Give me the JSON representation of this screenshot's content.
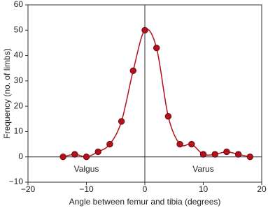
{
  "chart_data": {
    "type": "line",
    "x_label": "Angle between femur and tibia (degrees)",
    "y_label": "Frequency (no. of limbs)",
    "x": [
      -14,
      -12,
      -10,
      -8,
      -6,
      -4,
      -2,
      0,
      2,
      4,
      6,
      8,
      10,
      12,
      14,
      16,
      18
    ],
    "series": [
      {
        "color": "#b3111b",
        "values": [
          0,
          1,
          0,
          2,
          5,
          14,
          34,
          50,
          43,
          16,
          5,
          5,
          1,
          1,
          2,
          1,
          0
        ]
      }
    ],
    "xlim": [
      -20,
      20
    ],
    "xticks": [
      {
        "value": -20,
        "label": "−20"
      },
      {
        "value": -10,
        "label": "−10"
      },
      0,
      10,
      20
    ],
    "ylim": [
      -10,
      60
    ],
    "yticks": [
      {
        "value": -10,
        "label": "−10"
      },
      0,
      10,
      20,
      30,
      40,
      50,
      60
    ],
    "annotations": [
      {
        "text": "Valgus",
        "x": -10,
        "y": -5
      },
      {
        "text": "Varus",
        "x": 10,
        "y": -5
      }
    ]
  }
}
